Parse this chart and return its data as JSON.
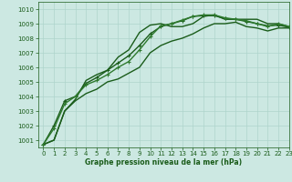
{
  "title": "Graphe pression niveau de la mer (hPa)",
  "background_color": "#cce8e2",
  "grid_color": "#aed4cc",
  "line_color_dark": "#1a5c1a",
  "line_color_med": "#2e7a2e",
  "xlim": [
    -0.5,
    23
  ],
  "ylim": [
    1000.5,
    1010.5
  ],
  "yticks": [
    1001,
    1002,
    1003,
    1004,
    1005,
    1006,
    1007,
    1008,
    1009,
    1010
  ],
  "xticks": [
    0,
    1,
    2,
    3,
    4,
    5,
    6,
    7,
    8,
    9,
    10,
    11,
    12,
    13,
    14,
    15,
    16,
    17,
    18,
    19,
    20,
    21,
    22,
    23
  ],
  "series": [
    {
      "y": [
        1000.7,
        1001.0,
        1003.0,
        1003.8,
        1005.1,
        1005.5,
        1005.8,
        1006.7,
        1007.2,
        1008.4,
        1008.9,
        1009.0,
        1008.8,
        1008.8,
        1009.0,
        1009.5,
        1009.6,
        1009.3,
        1009.3,
        1009.3,
        1009.3,
        1009.0,
        1009.0,
        1008.8
      ],
      "marker": null,
      "color": "#1a5c1a",
      "lw": 1.0
    },
    {
      "y": [
        1000.7,
        1001.0,
        1003.0,
        1003.7,
        1004.2,
        1004.5,
        1005.0,
        1005.2,
        1005.6,
        1006.0,
        1007.0,
        1007.5,
        1007.8,
        1008.0,
        1008.3,
        1008.7,
        1009.0,
        1009.0,
        1009.1,
        1008.8,
        1008.7,
        1008.5,
        1008.7,
        1008.7
      ],
      "marker": null,
      "color": "#1a5c1a",
      "lw": 1.0
    },
    {
      "y": [
        1000.7,
        1002.0,
        1003.7,
        1004.0,
        1004.9,
        1005.3,
        1005.8,
        1006.3,
        1006.8,
        1007.5,
        1008.3,
        1008.8,
        1009.0,
        1009.2,
        1009.5,
        1009.55,
        1009.55,
        1009.35,
        1009.3,
        1009.15,
        1009.0,
        1008.85,
        1008.9,
        1008.75
      ],
      "marker": "+",
      "color": "#1a5c1a",
      "lw": 1.0
    },
    {
      "y": [
        1000.7,
        1001.8,
        1003.5,
        1004.0,
        1004.8,
        1005.1,
        1005.5,
        1006.0,
        1006.4,
        1007.2,
        1008.1,
        1008.85,
        1009.0,
        1009.25,
        1009.5,
        1009.6,
        1009.6,
        1009.4,
        1009.3,
        1009.2,
        1009.0,
        1008.8,
        1009.0,
        1008.8
      ],
      "marker": "+",
      "color": "#2e7a2e",
      "lw": 1.0
    }
  ]
}
